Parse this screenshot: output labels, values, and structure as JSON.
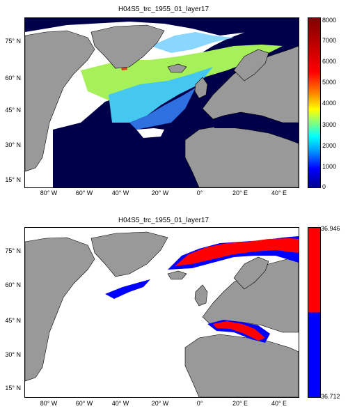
{
  "figure": {
    "top": {
      "title": "H04S5_trc_1955_01_layer17",
      "lat_ticks": [
        "75° N",
        "60° N",
        "45° N",
        "30° N",
        "15° N"
      ],
      "lon_ticks": [
        "80° W",
        "60° W",
        "40° W",
        "20° W",
        "0°",
        "20° E",
        "40° E"
      ],
      "colorbar": {
        "ticks": [
          "8000",
          "7000",
          "6000",
          "5000",
          "4000",
          "3000",
          "2000",
          "1000",
          "0"
        ],
        "range": [
          0,
          8000
        ],
        "colormap": "jet"
      }
    },
    "bottom": {
      "title": "H04S5_trc_1955_01_layer17",
      "lat_ticks": [
        "75° N",
        "60° N",
        "45° N",
        "30° N",
        "15° N"
      ],
      "lon_ticks": [
        "80° W",
        "60° W",
        "40° W",
        "20° W",
        "0°",
        "20° E",
        "40° E"
      ],
      "colorbar": {
        "max_label": "36.946",
        "min_label": "36.712",
        "colors": [
          "#ff0000",
          "#0000ff"
        ]
      }
    }
  },
  "colors": {
    "land": "#999999",
    "ocean_empty": "#ffffff",
    "deep_navy": "#00004a"
  }
}
